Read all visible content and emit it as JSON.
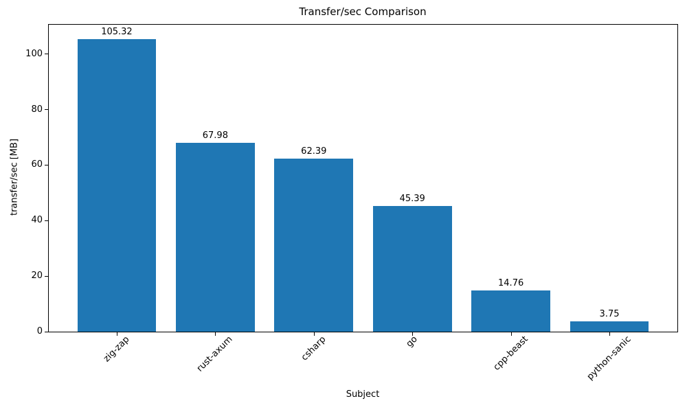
{
  "figure": {
    "background": "#ffffff"
  },
  "chart_data": {
    "type": "bar",
    "title": "Transfer/sec Comparison",
    "xlabel": "Subject",
    "ylabel": "transfer/sec [MB]",
    "categories": [
      "zig-zap",
      "rust-axum",
      "csharp",
      "go",
      "cpp-beast",
      "python-sanic"
    ],
    "values": [
      105.32,
      67.98,
      62.39,
      45.39,
      14.76,
      3.75
    ],
    "value_labels": [
      "105.32",
      "67.98",
      "62.39",
      "45.39",
      "14.76",
      "3.75"
    ],
    "yticks": [
      0,
      20,
      40,
      60,
      80,
      100
    ],
    "ylim": [
      0,
      110.59
    ],
    "bar_color": "#1f77b4",
    "axis_color": "#000000",
    "text_color": "#000000",
    "grid": false,
    "legend": null,
    "x_tick_rotation_deg": 45
  }
}
